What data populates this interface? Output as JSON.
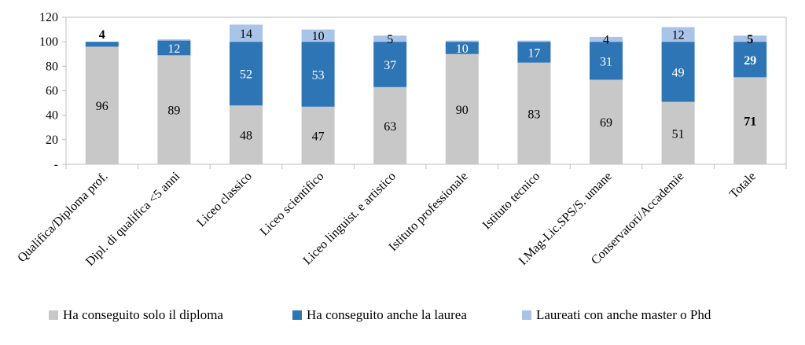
{
  "chart_data": {
    "type": "bar",
    "stacked": true,
    "title": "",
    "xlabel": "",
    "ylabel": "",
    "ylim": [
      0,
      120
    ],
    "yticks": [
      0,
      20,
      40,
      60,
      80,
      100,
      120
    ],
    "ytick_labels": [
      "-",
      "20",
      "40",
      "60",
      "80",
      "100",
      "120"
    ],
    "grid": false,
    "legend_position": "bottom",
    "categories": [
      "Qualifica/Diploma prof.",
      "Dipl. di qualifica <5 anni",
      "Liceo classico",
      "Liceo scientifico",
      "Liceo linguist. e artistico",
      "Istituto professionale",
      "Istituto tecnico",
      "I.Mag-Lic.SPS/S. umane",
      "Conservatori/Accademie",
      "Totale"
    ],
    "series": [
      {
        "name": "Ha conseguito solo il diploma",
        "color": "#c8c8c8",
        "label_color": "#000000",
        "values": [
          96,
          89,
          48,
          47,
          63,
          90,
          83,
          69,
          51,
          71
        ]
      },
      {
        "name": "Ha conseguito anche la laurea",
        "color": "#2e75b6",
        "label_color": "#ffffff",
        "values": [
          4,
          12,
          52,
          53,
          37,
          10,
          17,
          31,
          49,
          29
        ],
        "labels_shown": [
          false,
          true,
          true,
          true,
          true,
          true,
          true,
          true,
          true,
          true
        ]
      },
      {
        "name": "Laureati con anche master o Phd",
        "color": "#a9c4e8",
        "label_color": "#000000",
        "values": [
          0,
          1,
          14,
          10,
          5,
          1,
          1,
          4,
          12,
          5
        ],
        "labels_shown": [
          false,
          false,
          true,
          true,
          true,
          false,
          false,
          true,
          true,
          true
        ]
      }
    ],
    "annotations": [
      {
        "category": "Qualifica/Diploma prof.",
        "text": "4",
        "note": "laurea value shown above bar",
        "bold": true
      }
    ],
    "bold_category": "Totale"
  }
}
